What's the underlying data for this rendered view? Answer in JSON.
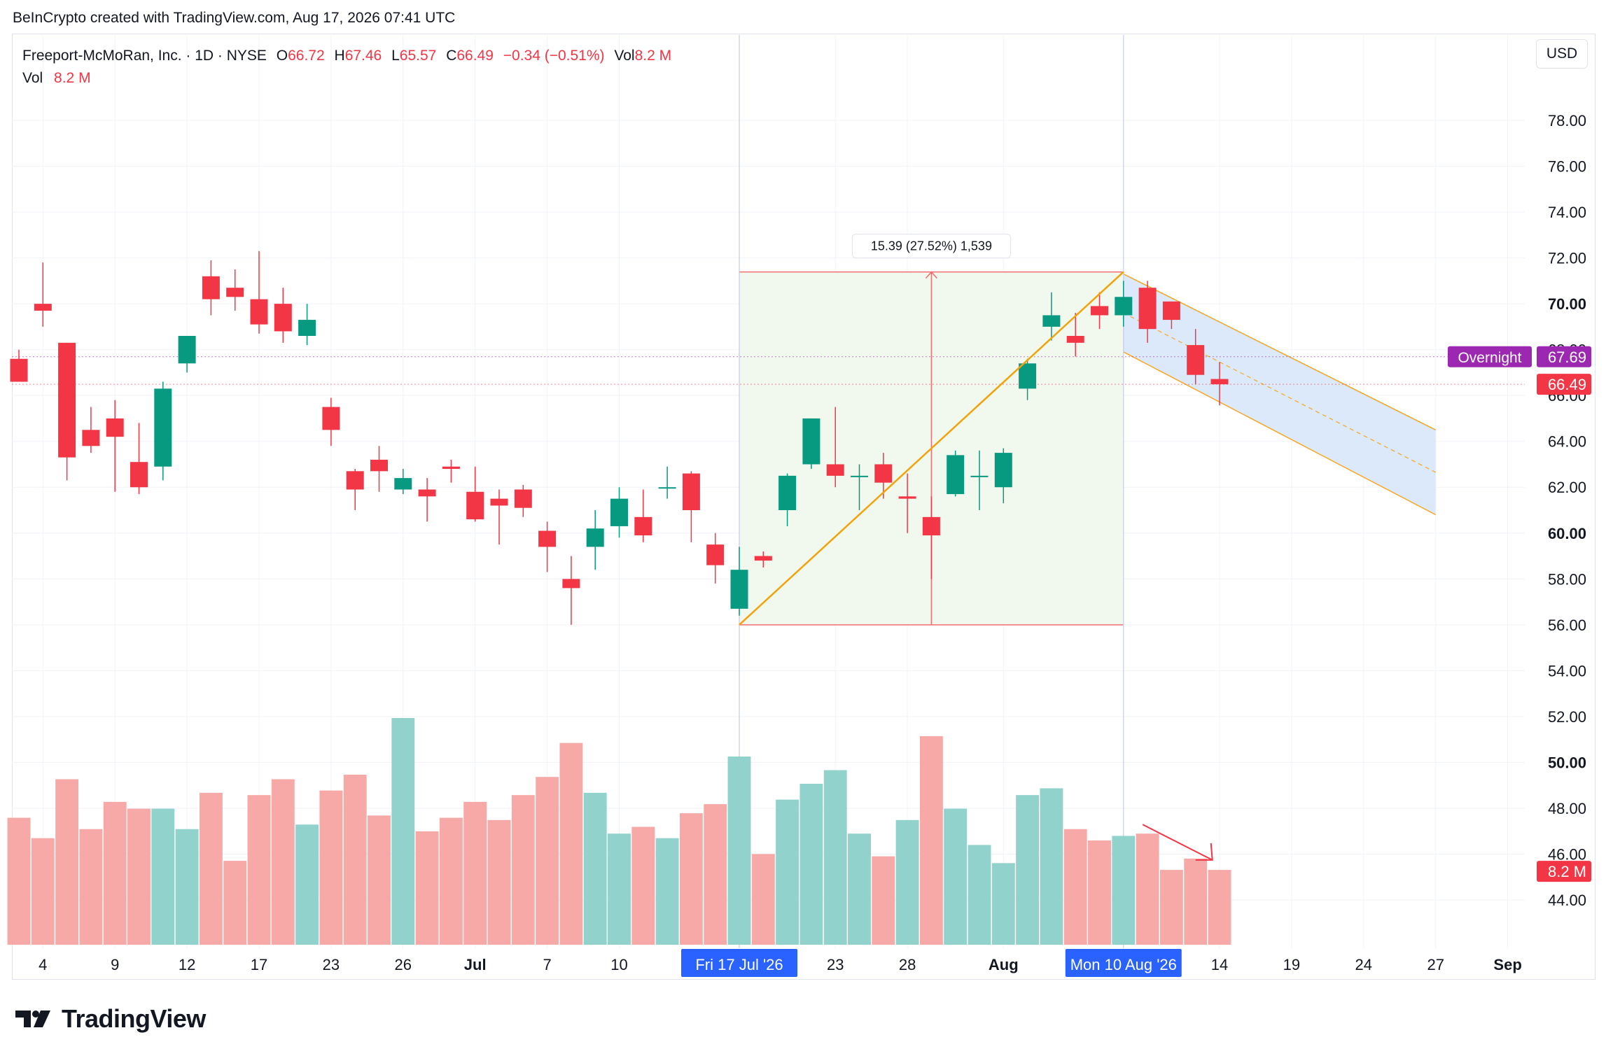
{
  "attribution": "BeInCrypto created with TradingView.com, Aug 17, 2026 07:41 UTC",
  "legend": {
    "symbol": "Freeport-McMoRan, Inc. · 1D · NYSE",
    "open_label": "O",
    "open_value": "66.72",
    "high_label": "H",
    "high_value": "67.46",
    "low_label": "L",
    "low_value": "65.57",
    "close_label": "C",
    "close_value": "66.49",
    "change": "−0.34 (−0.51%)",
    "vol_label": "Vol",
    "vol_value": "8.2 M",
    "vol_row_label": "Vol",
    "vol_row_value": "8.2 M"
  },
  "currency": "USD",
  "logo_text": "TradingView",
  "colors": {
    "up": "#089981",
    "down": "#f23645",
    "volume_up": "#92d2cc",
    "volume_down": "#f7a9a7",
    "channel_fill": "#dbe9fb",
    "channel_line": "#f5a623",
    "measure_fill": "#f1f8ee",
    "trendline": "#f0a30a",
    "overnight": "#9c27b0",
    "axis_highlight": "#2962ff"
  },
  "chart_data": {
    "type": "candlestick",
    "price_axis": {
      "min": 42.0,
      "max": 80.0,
      "ticks": [
        "44.00",
        "46.00",
        "48.00",
        "50.00",
        "52.00",
        "54.00",
        "56.00",
        "58.00",
        "60.00",
        "62.00",
        "64.00",
        "66.00",
        "68.00",
        "70.00",
        "72.00",
        "74.00",
        "76.00",
        "78.00"
      ],
      "bold_ticks": [
        "50.00",
        "60.00",
        "70.00"
      ]
    },
    "time_axis": {
      "ticks": [
        {
          "label": "4",
          "i": 1
        },
        {
          "label": "9",
          "i": 4
        },
        {
          "label": "12",
          "i": 7
        },
        {
          "label": "17",
          "i": 10
        },
        {
          "label": "23",
          "i": 13
        },
        {
          "label": "26",
          "i": 16
        },
        {
          "label": "Jul",
          "i": 19,
          "bold": true
        },
        {
          "label": "7",
          "i": 22
        },
        {
          "label": "10",
          "i": 25
        },
        {
          "label": "23",
          "i": 34
        },
        {
          "label": "28",
          "i": 37
        },
        {
          "label": "Aug",
          "i": 41,
          "bold": true
        },
        {
          "label": "14",
          "i": 50
        },
        {
          "label": "19",
          "i": 53
        },
        {
          "label": "24",
          "i": 56
        },
        {
          "label": "27",
          "i": 59
        },
        {
          "label": "Sep",
          "i": 62,
          "bold": true
        }
      ],
      "highlights": [
        {
          "label": "Fri 17 Jul '26",
          "i": 30
        },
        {
          "label": "Mon 10 Aug '26",
          "i": 46
        }
      ]
    },
    "candles": [
      {
        "o": 67.6,
        "h": 68.0,
        "l": 66.6,
        "c": 66.6
      },
      {
        "o": 70.0,
        "h": 71.8,
        "l": 69.0,
        "c": 69.7
      },
      {
        "o": 68.3,
        "h": 68.3,
        "l": 62.3,
        "c": 63.3
      },
      {
        "o": 64.5,
        "h": 65.5,
        "l": 63.5,
        "c": 63.8
      },
      {
        "o": 65.0,
        "h": 65.8,
        "l": 61.8,
        "c": 64.2
      },
      {
        "o": 63.1,
        "h": 64.8,
        "l": 61.7,
        "c": 62.0
      },
      {
        "o": 62.9,
        "h": 66.6,
        "l": 62.3,
        "c": 66.3
      },
      {
        "o": 67.4,
        "h": 68.6,
        "l": 67.0,
        "c": 68.6
      },
      {
        "o": 71.2,
        "h": 71.9,
        "l": 69.5,
        "c": 70.2
      },
      {
        "o": 70.7,
        "h": 71.5,
        "l": 69.7,
        "c": 70.3
      },
      {
        "o": 70.2,
        "h": 72.3,
        "l": 68.7,
        "c": 69.1
      },
      {
        "o": 70.0,
        "h": 70.7,
        "l": 68.3,
        "c": 68.8
      },
      {
        "o": 68.6,
        "h": 70.0,
        "l": 68.2,
        "c": 69.3
      },
      {
        "o": 65.5,
        "h": 65.9,
        "l": 63.8,
        "c": 64.5
      },
      {
        "o": 62.7,
        "h": 62.8,
        "l": 61.0,
        "c": 61.9
      },
      {
        "o": 63.2,
        "h": 63.8,
        "l": 61.8,
        "c": 62.7
      },
      {
        "o": 61.9,
        "h": 62.8,
        "l": 61.7,
        "c": 62.4
      },
      {
        "o": 61.9,
        "h": 62.4,
        "l": 60.5,
        "c": 61.6
      },
      {
        "o": 62.9,
        "h": 63.2,
        "l": 62.2,
        "c": 62.8
      },
      {
        "o": 61.8,
        "h": 62.9,
        "l": 60.5,
        "c": 60.6
      },
      {
        "o": 61.5,
        "h": 61.9,
        "l": 59.5,
        "c": 61.2
      },
      {
        "o": 61.9,
        "h": 62.1,
        "l": 60.7,
        "c": 61.1
      },
      {
        "o": 60.1,
        "h": 60.5,
        "l": 58.3,
        "c": 59.4
      },
      {
        "o": 58.0,
        "h": 59.0,
        "l": 56.0,
        "c": 57.6
      },
      {
        "o": 59.4,
        "h": 61.0,
        "l": 58.4,
        "c": 60.2
      },
      {
        "o": 60.3,
        "h": 62.0,
        "l": 59.8,
        "c": 61.5
      },
      {
        "o": 60.7,
        "h": 61.9,
        "l": 59.6,
        "c": 59.9
      },
      {
        "o": 62.0,
        "h": 62.9,
        "l": 61.5,
        "c": 62.0
      },
      {
        "o": 62.6,
        "h": 62.7,
        "l": 59.6,
        "c": 61.0
      },
      {
        "o": 59.5,
        "h": 60.0,
        "l": 57.8,
        "c": 58.6
      },
      {
        "o": 56.7,
        "h": 59.4,
        "l": 56.4,
        "c": 58.4
      },
      {
        "o": 59.0,
        "h": 59.2,
        "l": 58.5,
        "c": 58.8
      },
      {
        "o": 61.0,
        "h": 62.6,
        "l": 60.3,
        "c": 62.5
      },
      {
        "o": 63.0,
        "h": 65.0,
        "l": 62.8,
        "c": 65.0
      },
      {
        "o": 63.0,
        "h": 65.5,
        "l": 62.0,
        "c": 62.5
      },
      {
        "o": 62.5,
        "h": 63.0,
        "l": 61.0,
        "c": 62.5
      },
      {
        "o": 63.0,
        "h": 63.5,
        "l": 61.5,
        "c": 62.2
      },
      {
        "o": 61.6,
        "h": 62.6,
        "l": 60.0,
        "c": 61.5
      },
      {
        "o": 60.7,
        "h": 61.6,
        "l": 58.0,
        "c": 59.9
      },
      {
        "o": 61.7,
        "h": 63.6,
        "l": 61.6,
        "c": 63.4
      },
      {
        "o": 62.5,
        "h": 63.6,
        "l": 61.0,
        "c": 62.5
      },
      {
        "o": 62.0,
        "h": 63.7,
        "l": 61.3,
        "c": 63.5
      },
      {
        "o": 66.3,
        "h": 67.6,
        "l": 65.8,
        "c": 67.4
      },
      {
        "o": 69.0,
        "h": 70.5,
        "l": 68.4,
        "c": 69.5
      },
      {
        "o": 68.6,
        "h": 69.6,
        "l": 67.7,
        "c": 68.3
      },
      {
        "o": 69.9,
        "h": 70.5,
        "l": 68.9,
        "c": 69.5
      },
      {
        "o": 69.5,
        "h": 71.0,
        "l": 69.0,
        "c": 70.3
      },
      {
        "o": 70.7,
        "h": 71.0,
        "l": 68.3,
        "c": 68.9
      },
      {
        "o": 70.1,
        "h": 70.1,
        "l": 68.9,
        "c": 69.3
      },
      {
        "o": 68.2,
        "h": 68.9,
        "l": 66.5,
        "c": 66.9
      },
      {
        "o": 66.72,
        "h": 67.46,
        "l": 65.57,
        "c": 66.49
      }
    ],
    "volume": {
      "scale_max": 100,
      "bars": [
        {
          "v": 56,
          "up": false
        },
        {
          "v": 47,
          "up": false
        },
        {
          "v": 73,
          "up": false
        },
        {
          "v": 51,
          "up": false
        },
        {
          "v": 63,
          "up": false
        },
        {
          "v": 60,
          "up": false
        },
        {
          "v": 60,
          "up": true
        },
        {
          "v": 51,
          "up": true
        },
        {
          "v": 67,
          "up": false
        },
        {
          "v": 37,
          "up": false
        },
        {
          "v": 66,
          "up": false
        },
        {
          "v": 73,
          "up": false
        },
        {
          "v": 53,
          "up": true
        },
        {
          "v": 68,
          "up": false
        },
        {
          "v": 75,
          "up": false
        },
        {
          "v": 57,
          "up": false
        },
        {
          "v": 100,
          "up": true
        },
        {
          "v": 50,
          "up": false
        },
        {
          "v": 56,
          "up": false
        },
        {
          "v": 63,
          "up": false
        },
        {
          "v": 55,
          "up": false
        },
        {
          "v": 66,
          "up": false
        },
        {
          "v": 74,
          "up": false
        },
        {
          "v": 89,
          "up": false
        },
        {
          "v": 67,
          "up": true
        },
        {
          "v": 49,
          "up": true
        },
        {
          "v": 52,
          "up": false
        },
        {
          "v": 47,
          "up": true
        },
        {
          "v": 58,
          "up": false
        },
        {
          "v": 62,
          "up": false
        },
        {
          "v": 83,
          "up": true
        },
        {
          "v": 40,
          "up": false
        },
        {
          "v": 64,
          "up": true
        },
        {
          "v": 71,
          "up": true
        },
        {
          "v": 77,
          "up": true
        },
        {
          "v": 49,
          "up": true
        },
        {
          "v": 39,
          "up": false
        },
        {
          "v": 55,
          "up": true
        },
        {
          "v": 92,
          "up": false
        },
        {
          "v": 60,
          "up": true
        },
        {
          "v": 44,
          "up": true
        },
        {
          "v": 36,
          "up": true
        },
        {
          "v": 66,
          "up": true
        },
        {
          "v": 69,
          "up": true
        },
        {
          "v": 51,
          "up": false
        },
        {
          "v": 46,
          "up": false
        },
        {
          "v": 48,
          "up": true
        },
        {
          "v": 49,
          "up": false
        },
        {
          "v": 33,
          "up": false
        },
        {
          "v": 38,
          "up": false
        },
        {
          "v": 33,
          "up": false
        }
      ]
    },
    "annotations": {
      "measure": {
        "start_i": 30,
        "end_i": 46,
        "low": 56.0,
        "high": 71.39,
        "label": "15.39 (27.52%) 1,539"
      },
      "trendline": {
        "from_i": 30,
        "from_price": 56.0,
        "to_i": 46,
        "to_price": 71.39
      },
      "channel": {
        "from_i": 46,
        "to_i": 59,
        "upper_from": 71.3,
        "upper_to": 64.5,
        "lower_from": 67.9,
        "lower_to": 60.8
      },
      "volume_arrow": {
        "from_i": 46.8,
        "to_i": 49.7
      },
      "price_labels": [
        {
          "label": "Overnight",
          "value": "67.69",
          "price": 67.69,
          "color": "#9c27b0"
        },
        {
          "label": "",
          "value": "66.49",
          "price": 66.49,
          "color": "#f23645"
        },
        {
          "label": "",
          "value": "8.2 M",
          "volume": 33,
          "color": "#f23645"
        }
      ]
    }
  }
}
